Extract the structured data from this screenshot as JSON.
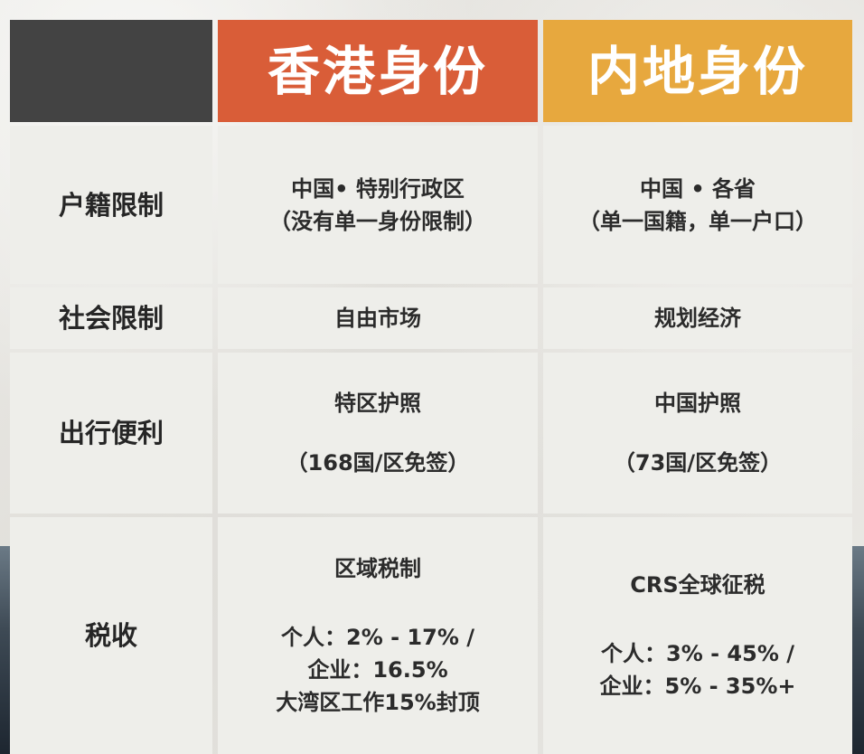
{
  "header": {
    "hk_title": "香港身份",
    "ml_title": "内地身份"
  },
  "rows": [
    {
      "label": "户籍限制",
      "hk": [
        "中国• 特别行政区",
        "（没有单一身份限制）"
      ],
      "ml": [
        "中国 • 各省",
        "（单一国籍，单一户口）"
      ]
    },
    {
      "label": "社会限制",
      "hk": [
        "自由市场"
      ],
      "ml": [
        "规划经济"
      ]
    },
    {
      "label": "出行便利",
      "hk": [
        "特区护照",
        "（168国/区免签）"
      ],
      "ml": [
        "中国护照",
        "（73国/区免签）"
      ]
    },
    {
      "label": "税收",
      "hk": [
        "区域税制",
        "个人：2% - 17% /",
        "企业：16.5%",
        "大湾区工作15%封顶"
      ],
      "ml": [
        "CRS全球征税",
        "个人：3% - 45% /",
        "企业：5% - 35%+"
      ]
    }
  ],
  "colors": {
    "hk_header": "#d95d38",
    "ml_header": "#e7a83e",
    "corner": "#434343",
    "cell": "#eeeeea"
  }
}
